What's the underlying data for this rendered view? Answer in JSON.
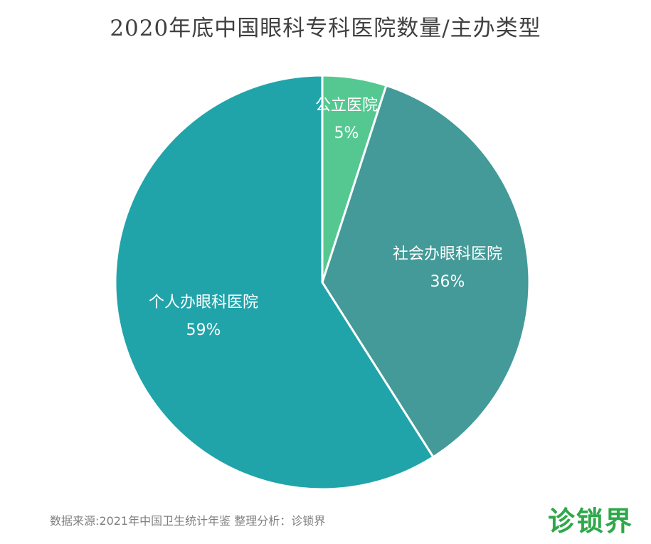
{
  "chart_data": {
    "type": "pie",
    "title": "2020年底中国眼科专科医院数量/主办类型",
    "slices": [
      {
        "label": "公立医院",
        "value": 5,
        "display": "5%",
        "color": "#54c890"
      },
      {
        "label": "社会办眼科医院",
        "value": 36,
        "display": "36%",
        "color": "#439a98"
      },
      {
        "label": "个人办眼科医院",
        "value": 59,
        "display": "59%",
        "color": "#20a4aa"
      }
    ],
    "start_angle_deg": 0,
    "direction": "clockwise"
  },
  "footer": {
    "source": "数据来源:2021年中国卫生统计年鉴  整理分析：诊锁界"
  },
  "brand": {
    "name": "诊锁界",
    "color": "#2ea84a"
  }
}
